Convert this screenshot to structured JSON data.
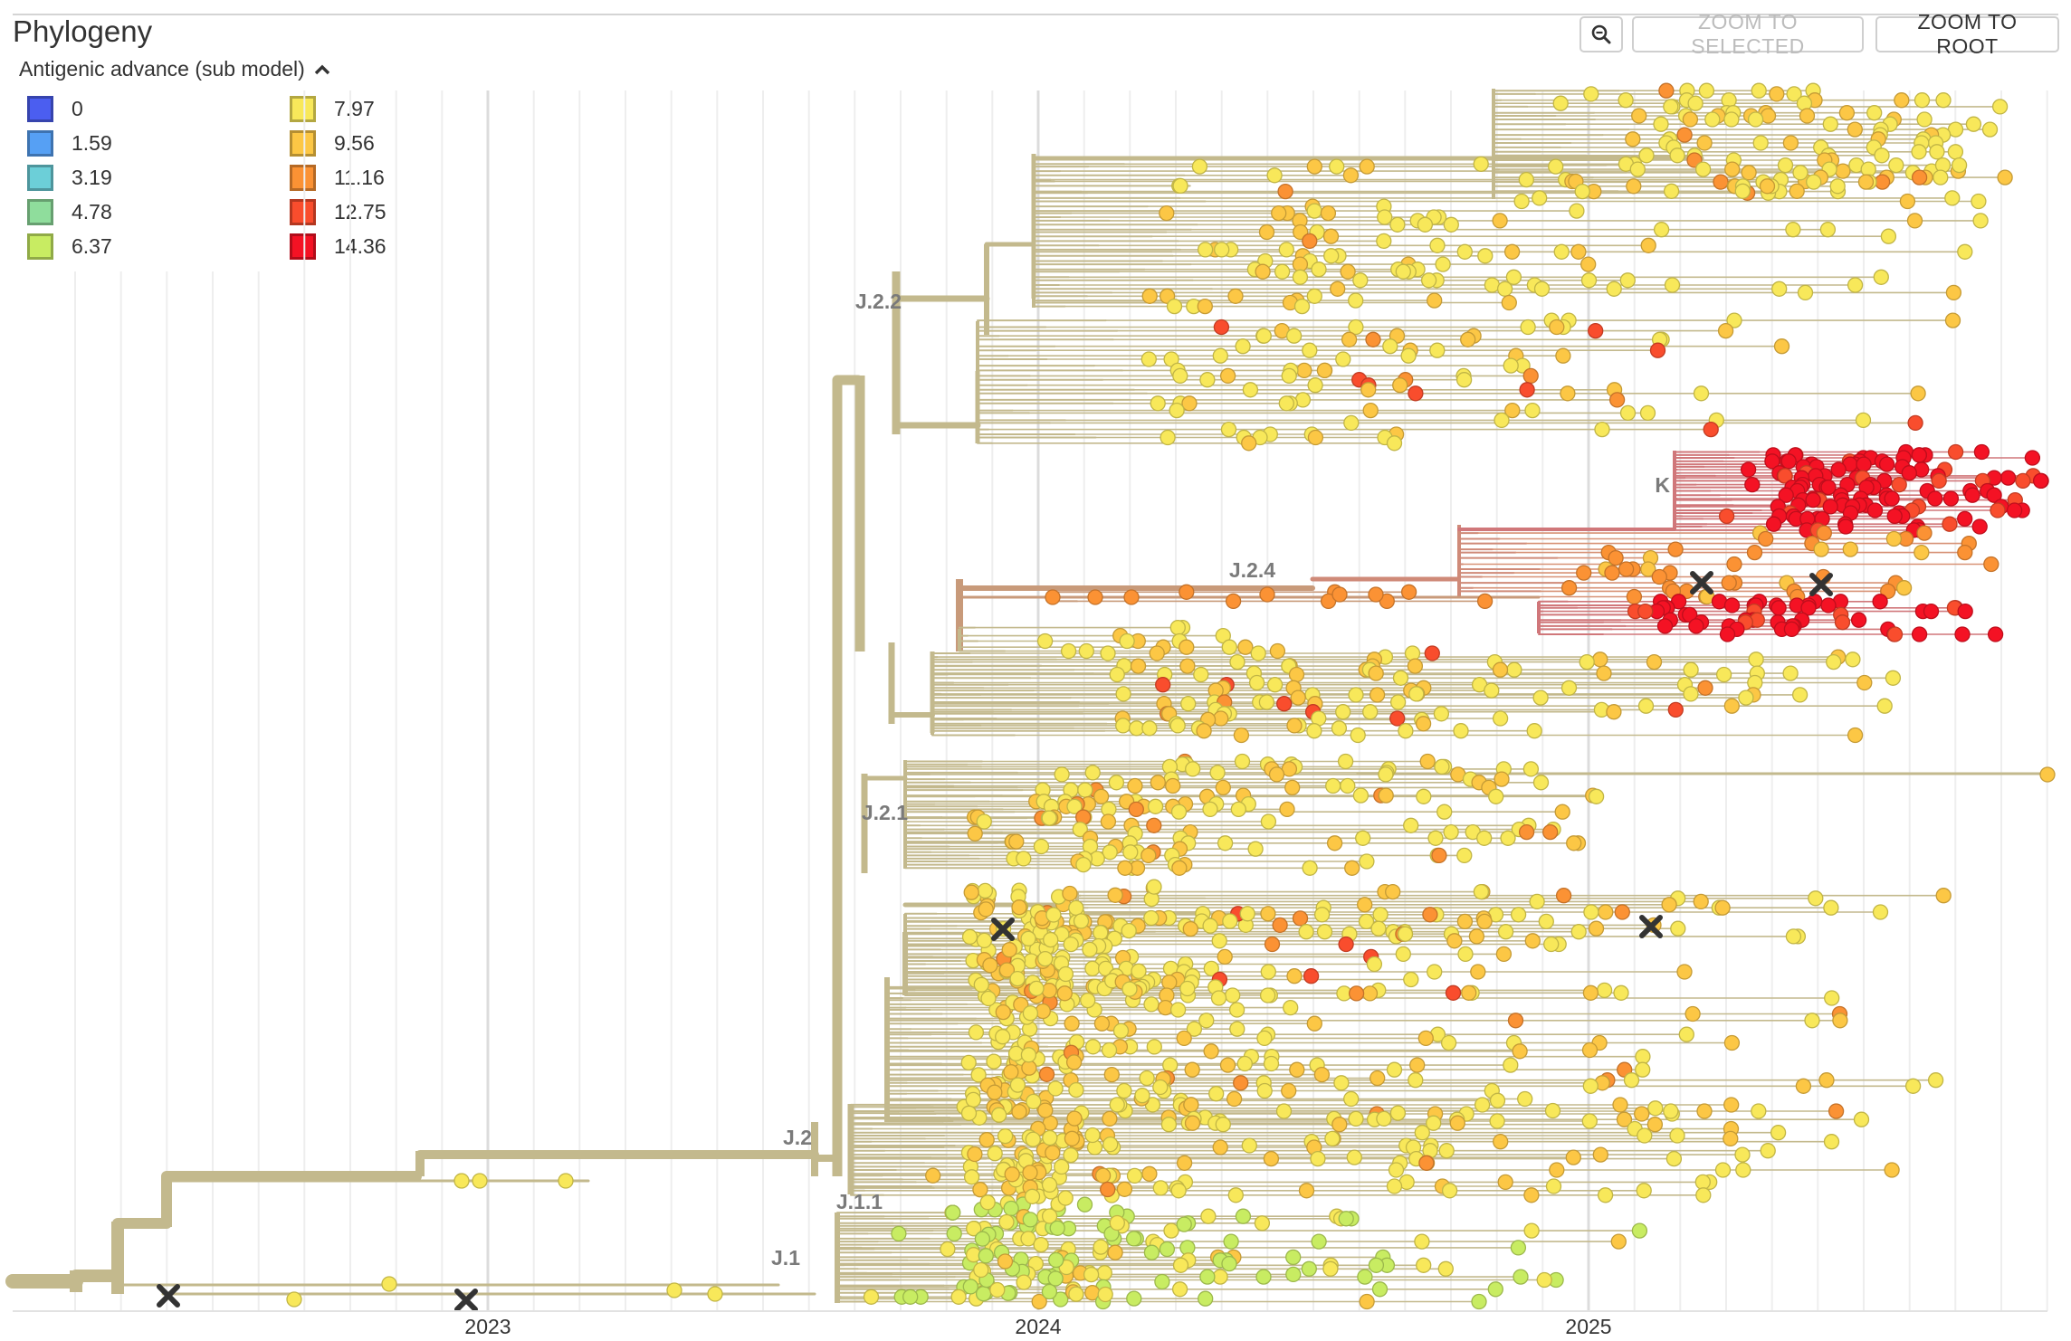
{
  "header": {
    "title": "Phylogeny",
    "zoom_selected_label": "ZOOM TO SELECTED",
    "zoom_root_label": "ZOOM TO ROOT"
  },
  "legend": {
    "title": "Antigenic advance (sub model)",
    "items": [
      {
        "label": "0",
        "color": "#4b5ef0"
      },
      {
        "label": "1.59",
        "color": "#56a0f4"
      },
      {
        "label": "3.19",
        "color": "#6ccfd8"
      },
      {
        "label": "4.78",
        "color": "#8fdd9c"
      },
      {
        "label": "6.37",
        "color": "#c8ec62"
      },
      {
        "label": "7.97",
        "color": "#f8e85a"
      },
      {
        "label": "9.56",
        "color": "#fcc745"
      },
      {
        "label": "11.16",
        "color": "#fb9234"
      },
      {
        "label": "12.75",
        "color": "#f94d2d"
      },
      {
        "label": "14.36",
        "color": "#f41224"
      }
    ]
  },
  "chart_data": {
    "type": "phylogeny",
    "title": "Phylogeny",
    "color_by": "Antigenic advance (sub model)",
    "x_ticks": [
      "2023",
      "2024",
      "2025"
    ],
    "x_range": [
      2022.14,
      2025.86
    ],
    "grid": true,
    "branch_color": "#c3b98d",
    "clade_labels": [
      "J.2.2",
      "K",
      "J.2.4",
      "J.2.1",
      "J.2",
      "J.1.1",
      "J.1"
    ]
  }
}
